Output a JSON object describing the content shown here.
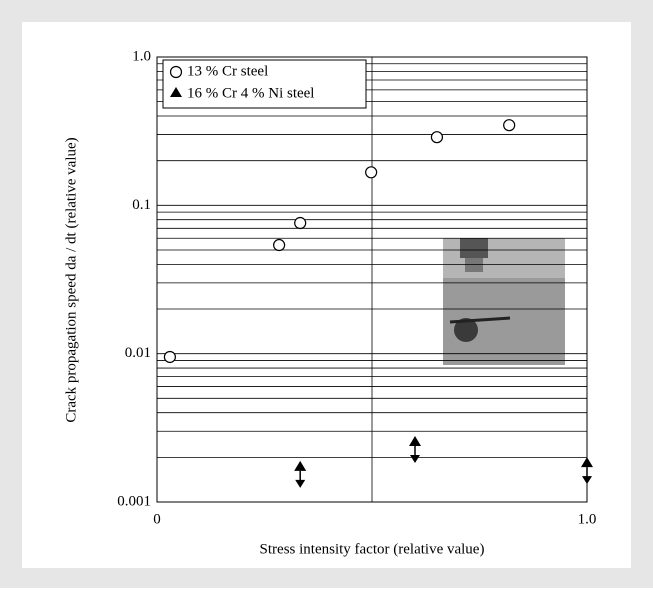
{
  "chart_data": {
    "type": "scatter",
    "xlabel": "Stress intensity factor (relative value)",
    "ylabel": "Crack propagation speed da / dt (relative value)",
    "xlim": [
      0,
      1
    ],
    "xticks": [
      0,
      {
        "value": 1,
        "label": "1.0"
      }
    ],
    "ylim": [
      0.001,
      1
    ],
    "yticks": [
      0.001,
      0.01,
      0.1,
      {
        "value": 1,
        "label": "1.0"
      }
    ],
    "log_y": true,
    "grid": true,
    "x_grid_lines": [
      0.5
    ],
    "legend": "upper left",
    "series": [
      {
        "name": "13 % Cr steel",
        "marker": "circle",
        "color": "#000000",
        "x": [
          0.03,
          0.284,
          0.333,
          0.498,
          0.651,
          0.819
        ],
        "values": [
          0.0095,
          0.054,
          0.076,
          0.167,
          0.288,
          0.347
        ]
      },
      {
        "name": "16 % Cr 4 % Ni steel",
        "marker": "triangle",
        "color": "#000000",
        "x": [
          0.333,
          0.6,
          1.0
        ],
        "values": [
          0.0017,
          0.0025,
          0.0018
        ]
      }
    ]
  }
}
